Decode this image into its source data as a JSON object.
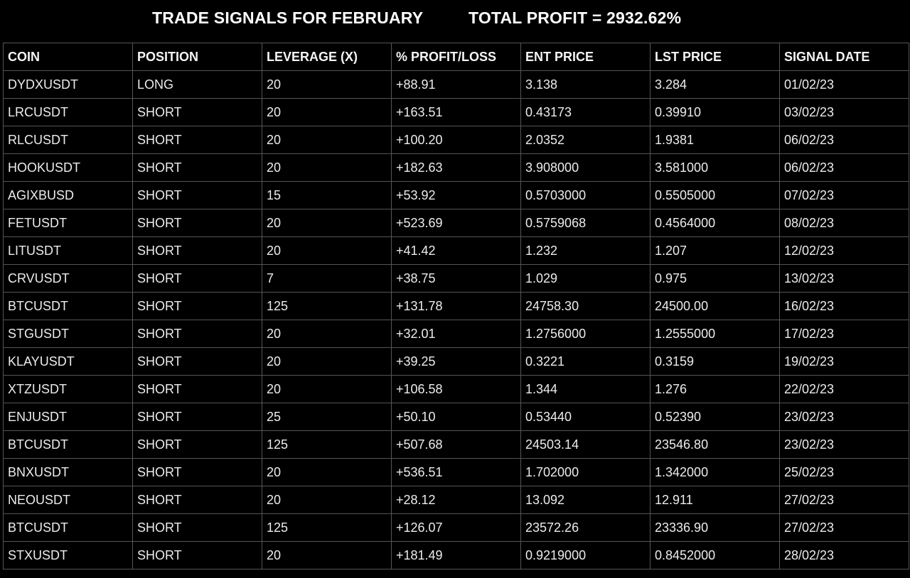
{
  "header": {
    "title": "TRADE SIGNALS FOR FEBRUARY",
    "total_profit": "TOTAL PROFIT = 2932.62%"
  },
  "table": {
    "columns": [
      "COIN",
      "POSITION",
      "LEVERAGE (X)",
      "% PROFIT/LOSS",
      "ENT PRICE",
      "LST PRICE",
      "SIGNAL DATE"
    ],
    "rows": [
      [
        "DYDXUSDT",
        "LONG",
        "20",
        "+88.91",
        "3.138",
        "3.284",
        "01/02/23"
      ],
      [
        "LRCUSDT",
        "SHORT",
        "20",
        "+163.51",
        "0.43173",
        "0.39910",
        "03/02/23"
      ],
      [
        "RLCUSDT",
        "SHORT",
        "20",
        "+100.20",
        "2.0352",
        "1.9381",
        "06/02/23"
      ],
      [
        "HOOKUSDT",
        "SHORT",
        "20",
        "+182.63",
        "3.908000",
        "3.581000",
        "06/02/23"
      ],
      [
        "AGIXBUSD",
        "SHORT",
        "15",
        "+53.92",
        "0.5703000",
        "0.5505000",
        "07/02/23"
      ],
      [
        "FETUSDT",
        "SHORT",
        "20",
        "+523.69",
        "0.5759068",
        "0.4564000",
        "08/02/23"
      ],
      [
        "LITUSDT",
        "SHORT",
        "20",
        "+41.42",
        "1.232",
        "1.207",
        "12/02/23"
      ],
      [
        "CRVUSDT",
        "SHORT",
        "7",
        "+38.75",
        "1.029",
        "0.975",
        "13/02/23"
      ],
      [
        "BTCUSDT",
        "SHORT",
        "125",
        "+131.78",
        "24758.30",
        "24500.00",
        "16/02/23"
      ],
      [
        "STGUSDT",
        "SHORT",
        "20",
        "+32.01",
        "1.2756000",
        "1.2555000",
        "17/02/23"
      ],
      [
        "KLAYUSDT",
        "SHORT",
        "20",
        "+39.25",
        "0.3221",
        "0.3159",
        "19/02/23"
      ],
      [
        "XTZUSDT",
        "SHORT",
        "20",
        "+106.58",
        "1.344",
        "1.276",
        "22/02/23"
      ],
      [
        "ENJUSDT",
        "SHORT",
        "25",
        "+50.10",
        "0.53440",
        "0.52390",
        "23/02/23"
      ],
      [
        "BTCUSDT",
        "SHORT",
        "125",
        "+507.68",
        "24503.14",
        "23546.80",
        "23/02/23"
      ],
      [
        "BNXUSDT",
        "SHORT",
        "20",
        "+536.51",
        "1.702000",
        "1.342000",
        "25/02/23"
      ],
      [
        "NEOUSDT",
        "SHORT",
        "20",
        "+28.12",
        "13.092",
        "12.911",
        "27/02/23"
      ],
      [
        "BTCUSDT",
        "SHORT",
        "125",
        "+126.07",
        "23572.26",
        "23336.90",
        "27/02/23"
      ],
      [
        "STXUSDT",
        "SHORT",
        "20",
        "+181.49",
        "0.9219000",
        "0.8452000",
        "28/02/23"
      ]
    ]
  }
}
